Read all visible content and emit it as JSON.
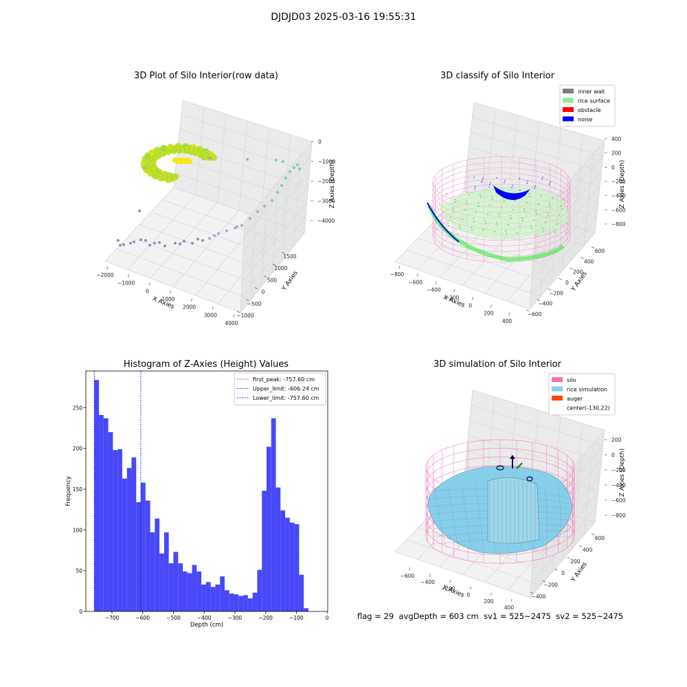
{
  "figure": {
    "suptitle": "DJDJD03 2025-03-16 19:55:31",
    "footer": "flag = 29  avgDepth = 603 cm  sv1 = 525~2475  sv2 = 525~2475"
  },
  "colors": {
    "hist_bar": "#4848f8",
    "first_peak": "#ff0000",
    "upper_limit": "#0000ff",
    "lower_limit": "#0000ff",
    "inner_wall": "#808080",
    "rice_surface": "#90ee90",
    "obstacle": "#ff0000",
    "noise": "#0000ff",
    "silo": "#ff69b4",
    "rice_simulation": "#87ceeb",
    "auger": "#ff4500"
  },
  "chart_data": [
    {
      "type": "scatter",
      "title": "3D Plot of Silo Interior(row data)",
      "xlabel": "X Axies",
      "ylabel": "Y Axies",
      "zlabel": "Z Axies (Depth)",
      "x_ticks": [
        "−2000",
        "−1000",
        "0",
        "1000",
        "2000",
        "3000",
        "4000"
      ],
      "y_ticks": [
        "−1000",
        "−500",
        "0",
        "500",
        "1000",
        "1500"
      ],
      "z_ticks": [
        "−4000",
        "−3000",
        "−2000",
        "−1000",
        "0"
      ],
      "grid": true
    },
    {
      "type": "scatter",
      "title": "3D classify of Silo Interior",
      "xlabel": "X Axies",
      "ylabel": "Y Axies",
      "zlabel": "Z Axies (Depth)",
      "x_ticks": [
        "−800",
        "−600",
        "−400",
        "−200",
        "0",
        "200",
        "400"
      ],
      "y_ticks": [
        "−600",
        "−400",
        "−200",
        "0",
        "200",
        "400",
        "600"
      ],
      "z_ticks": [
        "−800",
        "−600",
        "−400",
        "−200",
        "0",
        "200",
        "400"
      ],
      "legend": [
        "inner wall",
        "rice surface",
        "obstacle",
        "noise"
      ],
      "legend_loc": "upper right",
      "grid": true
    },
    {
      "type": "bar",
      "title": "Histogram of Z-Axies (Height) Values",
      "xlabel": "Depth (cm)",
      "ylabel": "Frequency",
      "xlim": [
        -785,
        2
      ],
      "ylim": [
        0,
        295
      ],
      "x_ticks": [
        -700,
        -600,
        -500,
        -400,
        -300,
        -200,
        -100,
        0
      ],
      "x_tick_labels": [
        "−700",
        "−600",
        "−500",
        "−400",
        "−300",
        "−200",
        "−100",
        "0"
      ],
      "y_ticks": [
        0,
        50,
        100,
        150,
        200,
        250
      ],
      "bin_start": -757.6,
      "bin_width": 15.15,
      "values": [
        284,
        241,
        237,
        220,
        198,
        199,
        163,
        176,
        189,
        134,
        158,
        136,
        97,
        114,
        71,
        97,
        59,
        73,
        59,
        49,
        47,
        57,
        49,
        33,
        36,
        30,
        33,
        43,
        26,
        22,
        21,
        19,
        20,
        16,
        23,
        51,
        148,
        202,
        237,
        152,
        124,
        115,
        109,
        107,
        45,
        4
      ],
      "vlines": [
        {
          "label": "first_peak: -757.60 cm",
          "x": -757.6,
          "color": "#ff0000"
        },
        {
          "label": "Upper_limit: -606.24 cm",
          "x": -606.24,
          "color": "#0000ff"
        },
        {
          "label": "Lower_limit: -757.60 cm",
          "x": -757.6,
          "color": "#0000ff"
        }
      ],
      "legend_loc": "upper right"
    },
    {
      "type": "scatter",
      "title": "3D simulation of Silo Interior",
      "xlabel": "X Axies",
      "ylabel": "Y Axies",
      "zlabel": "Z Axies (Depth)",
      "x_ticks": [
        "−600",
        "−400",
        "−200",
        "0",
        "200",
        "400"
      ],
      "y_ticks": [
        "−400",
        "−200",
        "0",
        "200",
        "400",
        "600"
      ],
      "z_ticks": [
        "−800",
        "−600",
        "−400",
        "−200",
        "0",
        "200"
      ],
      "legend": [
        "silo",
        "rice simulation",
        "auger",
        "center(-130,22)"
      ],
      "legend_loc": "upper right",
      "grid": true
    }
  ]
}
